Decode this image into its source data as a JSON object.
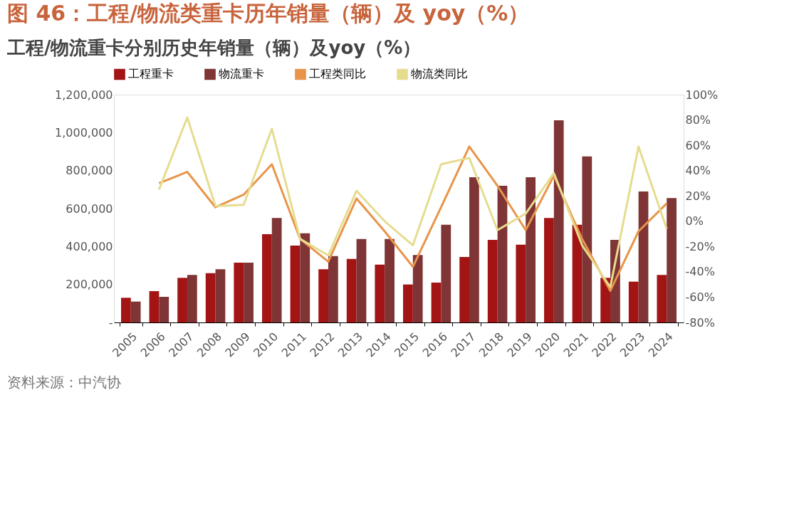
{
  "chart_data": {
    "type": "bar",
    "title": "图 46：工程/物流类重卡历年销量（辆）及 yoy（%）",
    "subtitle": "工程/物流重卡分别历史年销量（辆）及yoy（%）",
    "categories": [
      "2005",
      "2006",
      "2007",
      "2008",
      "2009",
      "2010",
      "2011",
      "2012",
      "2013",
      "2014",
      "2015",
      "2016",
      "2017",
      "2018",
      "2019",
      "2020",
      "2021",
      "2022",
      "2023",
      "2024"
    ],
    "series": [
      {
        "name": "工程重卡",
        "color": "#a31515",
        "values": [
          130000,
          165000,
          235000,
          260000,
          315000,
          465000,
          405000,
          280000,
          335000,
          305000,
          200000,
          210000,
          345000,
          435000,
          410000,
          550000,
          515000,
          235000,
          215000,
          250000
        ]
      },
      {
        "name": "物流重卡",
        "color": "#7f3535",
        "values": [
          110000,
          135000,
          250000,
          280000,
          315000,
          550000,
          470000,
          350000,
          440000,
          440000,
          355000,
          515000,
          765000,
          720000,
          765000,
          1065000,
          875000,
          435000,
          690000,
          655000
        ]
      },
      {
        "name": "工程类同比",
        "type": "line",
        "axis": "y2",
        "color": "#e8954a",
        "values": [
          null,
          30,
          39,
          11,
          21,
          45,
          -14,
          -32,
          18,
          -8,
          -36,
          11,
          59,
          28,
          -7,
          36,
          -14,
          -55,
          -8,
          14
        ]
      },
      {
        "name": "物流类同比",
        "type": "line",
        "axis": "y2",
        "color": "#e6dc8f",
        "values": [
          null,
          25,
          82,
          12,
          13,
          73,
          -14,
          -27,
          24,
          0,
          -19,
          45,
          50,
          -7,
          6,
          38,
          -19,
          -52,
          59,
          -6
        ]
      }
    ],
    "ylim": [
      0,
      1200000
    ],
    "yticks": [
      {
        "value": 0,
        "label": "-"
      },
      {
        "value": 200000,
        "label": "200,000"
      },
      {
        "value": 400000,
        "label": "400,000"
      },
      {
        "value": 600000,
        "label": "600,000"
      },
      {
        "value": 800000,
        "label": "800,000"
      },
      {
        "value": 1000000,
        "label": "1,000,000"
      },
      {
        "value": 1200000,
        "label": "1,200,000"
      }
    ],
    "y2lim": [
      -80,
      100
    ],
    "y2ticks": [
      {
        "value": -80,
        "label": "-80%"
      },
      {
        "value": -60,
        "label": "-60%"
      },
      {
        "value": -40,
        "label": "-40%"
      },
      {
        "value": -20,
        "label": "-20%"
      },
      {
        "value": 0,
        "label": "0%"
      },
      {
        "value": 20,
        "label": "20%"
      },
      {
        "value": 40,
        "label": "40%"
      },
      {
        "value": 60,
        "label": "60%"
      },
      {
        "value": 80,
        "label": "80%"
      },
      {
        "value": 100,
        "label": "100%"
      }
    ],
    "grid": false,
    "legend": "top",
    "marker": "none",
    "line_style": "solid",
    "annotations": [
      "资料来源：中汽协"
    ]
  }
}
